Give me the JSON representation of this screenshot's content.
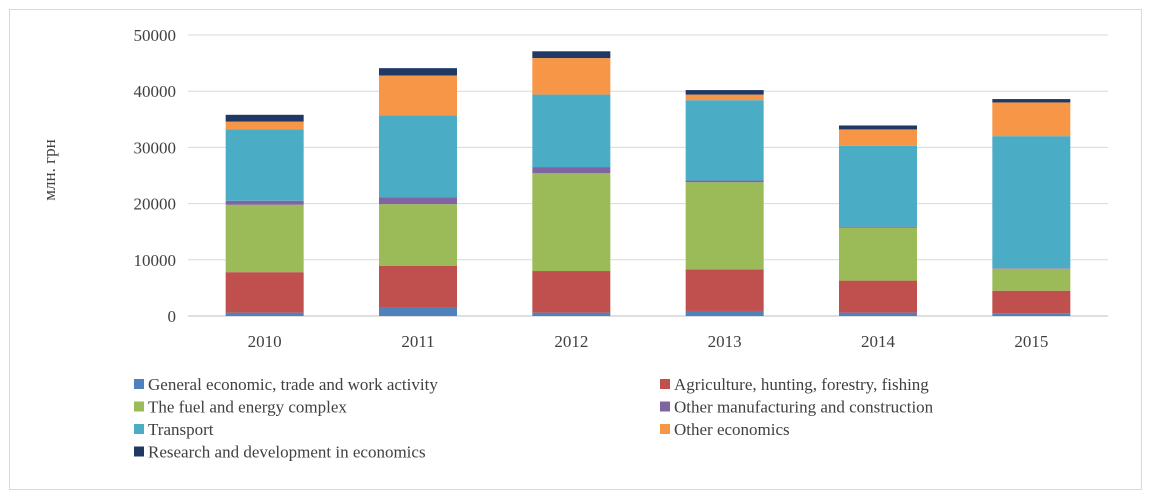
{
  "chart_data": {
    "type": "bar",
    "stacked": true,
    "title": "",
    "xlabel": "",
    "ylabel": "млн. грн",
    "ylim": [
      0,
      50000
    ],
    "yticks": [
      0,
      10000,
      20000,
      30000,
      40000,
      50000
    ],
    "grid": true,
    "legend_position": "bottom",
    "categories": [
      "2010",
      "2011",
      "2012",
      "2013",
      "2014",
      "2015"
    ],
    "series": [
      {
        "name": "General economic, trade and work activity",
        "color": "#4f81bd",
        "values": [
          600,
          1500,
          600,
          900,
          600,
          500
        ]
      },
      {
        "name": "Agriculture, hunting, forestry, fishing",
        "color": "#c0504d",
        "values": [
          7200,
          7400,
          7400,
          7400,
          5700,
          4000
        ]
      },
      {
        "name": "The fuel and energy complex",
        "color": "#9bbb59",
        "values": [
          12000,
          11000,
          17400,
          15500,
          9400,
          3900
        ]
      },
      {
        "name": "Other manufacturing and construction",
        "color": "#8064a2",
        "values": [
          700,
          1200,
          1100,
          300,
          200,
          100
        ]
      },
      {
        "name": "Transport",
        "color": "#4bacc6",
        "values": [
          12700,
          14600,
          12900,
          14300,
          14400,
          23500
        ]
      },
      {
        "name": "Other economics",
        "color": "#f79646",
        "values": [
          1400,
          7100,
          6500,
          1000,
          2900,
          6000
        ]
      },
      {
        "name": "Research and development in economics",
        "color": "#1f3864",
        "values": [
          1200,
          1300,
          1200,
          800,
          700,
          600
        ]
      }
    ]
  }
}
